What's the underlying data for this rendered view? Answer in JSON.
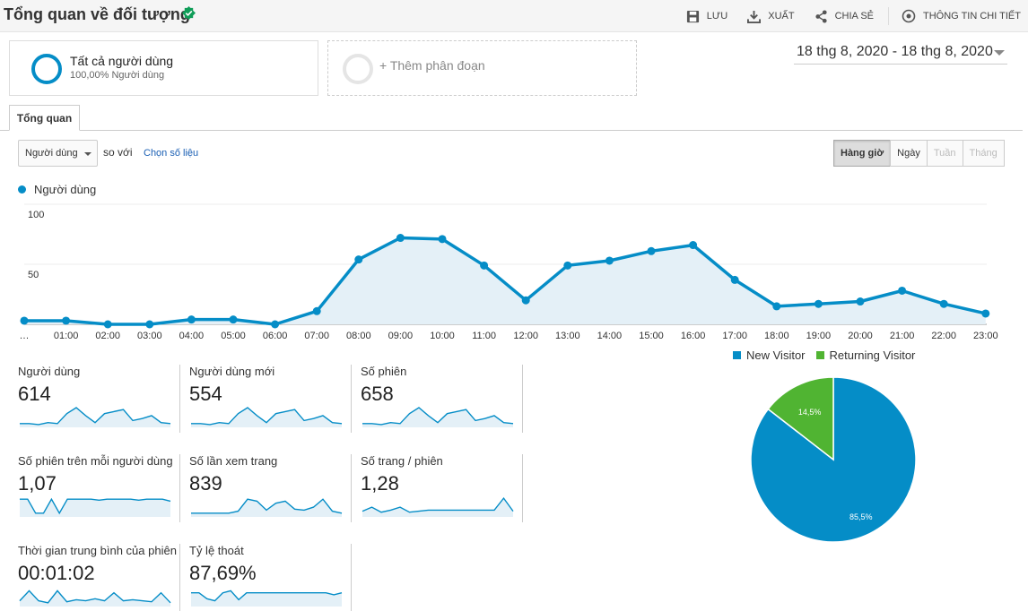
{
  "header": {
    "title": "Tổng quan về đối tượng",
    "actions": [
      "LƯU",
      "XUẤT",
      "CHIA SẺ",
      "THÔNG TIN CHI TIẾT"
    ]
  },
  "segments": [
    {
      "name": "Tất cả người dùng",
      "sub": "100,00% Người dùng"
    },
    {
      "name": "+ Thêm phân đoạn"
    }
  ],
  "date_range": "18 thg 8, 2020 - 18 thg 8, 2020",
  "tabs": [
    "Tổng quan"
  ],
  "controls": {
    "metric": "Người dùng",
    "compare_text": "so với",
    "choose_metric": "Chọn số liệu",
    "granularity": [
      {
        "label": "Hàng giờ",
        "state": "active"
      },
      {
        "label": "Ngày",
        "state": "normal"
      },
      {
        "label": "Tuần",
        "state": "disabled"
      },
      {
        "label": "Tháng",
        "state": "disabled"
      }
    ]
  },
  "colors": {
    "primary": "#058dc7",
    "secondary": "#50b432",
    "fill": "#e4f0f7"
  },
  "chart_data": [
    {
      "type": "area",
      "series": [
        {
          "name": "Người dùng",
          "values": [
            3,
            3,
            0,
            0,
            4,
            4,
            0,
            11,
            54,
            72,
            71,
            49,
            20,
            49,
            53,
            61,
            66,
            37,
            15,
            17,
            19,
            28,
            17,
            9
          ]
        }
      ],
      "x": [
        "…",
        "01:00",
        "02:00",
        "03:00",
        "04:00",
        "05:00",
        "06:00",
        "07:00",
        "08:00",
        "09:00",
        "10:00",
        "11:00",
        "12:00",
        "13:00",
        "14:00",
        "15:00",
        "16:00",
        "17:00",
        "18:00",
        "19:00",
        "20:00",
        "21:00",
        "22:00",
        "23:00"
      ],
      "yticks": [
        "100",
        "50"
      ],
      "ylim": [
        0,
        100
      ]
    },
    {
      "type": "pie",
      "slices": [
        {
          "name": "New Visitor",
          "value": 85.5,
          "label": "85,5%",
          "color": "#058dc7"
        },
        {
          "name": "Returning Visitor",
          "value": 14.5,
          "label": "14,5%",
          "color": "#50b432"
        }
      ]
    }
  ],
  "scorecards": [
    {
      "label": "Người dùng",
      "value": "614",
      "spark": [
        2,
        2,
        1,
        3,
        2,
        12,
        18,
        10,
        3,
        12,
        14,
        16,
        5,
        7,
        10,
        3,
        2
      ]
    },
    {
      "label": "Người dùng mới",
      "value": "554",
      "spark": [
        2,
        2,
        1,
        3,
        2,
        12,
        18,
        10,
        3,
        12,
        14,
        16,
        5,
        7,
        10,
        3,
        2
      ]
    },
    {
      "label": "Số phiên",
      "value": "658",
      "spark": [
        2,
        2,
        1,
        3,
        2,
        12,
        18,
        10,
        3,
        12,
        14,
        16,
        5,
        7,
        10,
        3,
        2
      ]
    },
    {
      "label": "Số phiên trên mỗi người dùng",
      "value": "1,07",
      "spark": [
        16,
        16,
        2,
        2,
        16,
        2,
        16,
        16,
        16,
        16,
        15,
        16,
        16,
        16,
        16,
        15,
        16,
        16,
        16,
        14
      ]
    },
    {
      "label": "Số lần xem trang",
      "value": "839",
      "spark": [
        2,
        2,
        2,
        2,
        2,
        4,
        16,
        14,
        5,
        12,
        14,
        6,
        5,
        8,
        16,
        4,
        2
      ]
    },
    {
      "label": "Số trang / phiên",
      "value": "1,28",
      "spark": [
        4,
        8,
        3,
        5,
        8,
        3,
        4,
        5,
        5,
        5,
        5,
        5,
        5,
        5,
        5,
        17,
        4
      ]
    },
    {
      "label": "Thời gian trung bình của phiên",
      "value": "00:01:02",
      "spark": [
        4,
        14,
        4,
        2,
        14,
        3,
        5,
        4,
        6,
        4,
        12,
        4,
        5,
        4,
        3,
        12,
        2
      ]
    },
    {
      "label": "Tỷ lệ thoát",
      "value": "87,69%",
      "spark": [
        12,
        12,
        6,
        4,
        12,
        14,
        5,
        12,
        12,
        12,
        12,
        12,
        12,
        12,
        12,
        12,
        12,
        12,
        10,
        12
      ]
    }
  ]
}
